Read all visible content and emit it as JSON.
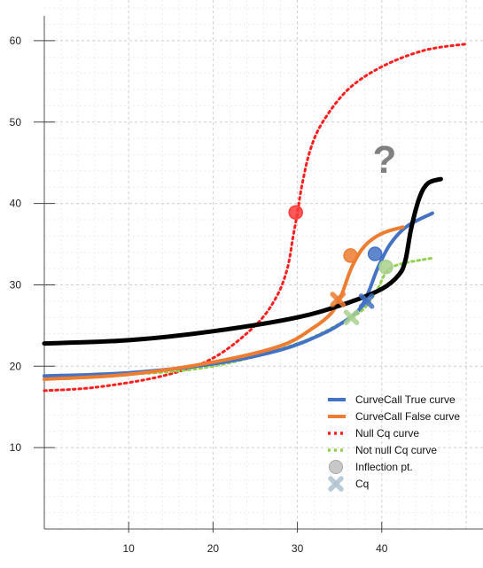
{
  "chart_data": {
    "type": "line",
    "title": "",
    "xlabel": "",
    "ylabel": "",
    "xlim": [
      0,
      52
    ],
    "ylim": [
      0,
      65
    ],
    "x_ticks": [
      10,
      20,
      30,
      40
    ],
    "y_ticks": [
      10,
      20,
      30,
      40,
      50,
      60
    ],
    "grid": true,
    "legend_position": "bottom-right",
    "annotation": "?",
    "series": [
      {
        "name": "CurveCall True curve",
        "color": "#4472C4",
        "style": "solid",
        "points": [
          [
            0,
            18.8
          ],
          [
            10,
            19.2
          ],
          [
            20,
            20.3
          ],
          [
            28,
            22.0
          ],
          [
            33,
            24.0
          ],
          [
            36,
            25.8
          ],
          [
            37.5,
            27.2
          ],
          [
            38.5,
            29.3
          ],
          [
            39.5,
            32.0
          ],
          [
            41,
            35.0
          ],
          [
            43,
            37.2
          ],
          [
            46,
            38.8
          ]
        ]
      },
      {
        "name": "CurveCall False curve",
        "color": "#ED7D31",
        "style": "solid",
        "points": [
          [
            0,
            18.4
          ],
          [
            10,
            19.0
          ],
          [
            20,
            20.5
          ],
          [
            28,
            22.5
          ],
          [
            32,
            24.8
          ],
          [
            34,
            26.5
          ],
          [
            35,
            28.2
          ],
          [
            35.5,
            29.5
          ],
          [
            36.5,
            32.3
          ],
          [
            38,
            34.8
          ],
          [
            40,
            36.3
          ],
          [
            42.5,
            37.1
          ]
        ]
      },
      {
        "name": "",
        "color": "#000000",
        "style": "solid",
        "points": [
          [
            0,
            22.8
          ],
          [
            10,
            23.2
          ],
          [
            20,
            24.3
          ],
          [
            30,
            26.0
          ],
          [
            36,
            27.8
          ],
          [
            40,
            29.5
          ],
          [
            42,
            31.2
          ],
          [
            42.8,
            33.0
          ],
          [
            43.5,
            37.0
          ],
          [
            44.5,
            40.8
          ],
          [
            45.5,
            42.5
          ],
          [
            47,
            43.0
          ]
        ]
      },
      {
        "name": "Null Cq curve",
        "color": "#FF1F1F",
        "style": "dotted",
        "points": [
          [
            0,
            17.0
          ],
          [
            6,
            17.4
          ],
          [
            14,
            18.8
          ],
          [
            20,
            21.0
          ],
          [
            25,
            25.0
          ],
          [
            27.5,
            28.5
          ],
          [
            28.8,
            32.0
          ],
          [
            29.5,
            36.0
          ],
          [
            30,
            38.8
          ],
          [
            30.5,
            42.0
          ],
          [
            31.5,
            46.5
          ],
          [
            33,
            50.0
          ],
          [
            36,
            54.0
          ],
          [
            40,
            56.8
          ],
          [
            45,
            58.8
          ],
          [
            50,
            59.6
          ]
        ]
      },
      {
        "name": "Not null Cq curve",
        "color": "#92D050",
        "style": "dotted",
        "points": [
          [
            0,
            18.8
          ],
          [
            10,
            19.0
          ],
          [
            20,
            20.0
          ],
          [
            30,
            22.8
          ],
          [
            36,
            25.8
          ],
          [
            38,
            27.2
          ],
          [
            39.5,
            29.5
          ],
          [
            40.5,
            31.5
          ],
          [
            42,
            32.5
          ],
          [
            46,
            33.3
          ]
        ]
      }
    ],
    "inflection_points": [
      {
        "series": "Null Cq curve",
        "x": 29.8,
        "y": 38.9,
        "color": "#FF3B3B"
      },
      {
        "series": "CurveCall False curve",
        "x": 36.3,
        "y": 33.6,
        "color": "#ED7D31"
      },
      {
        "series": "CurveCall True curve",
        "x": 39.2,
        "y": 33.8,
        "color": "#4472C4"
      },
      {
        "series": "Not null Cq curve",
        "x": 40.5,
        "y": 32.2,
        "color": "#A9D18E"
      }
    ],
    "cq_points": [
      {
        "series": "CurveCall False curve",
        "x": 34.8,
        "y": 28.2,
        "color": "#ED7D31"
      },
      {
        "series": "Not null Cq curve",
        "x": 36.4,
        "y": 26.0,
        "color": "#A9D18E"
      },
      {
        "series": "CurveCall True curve",
        "x": 38.2,
        "y": 28.0,
        "color": "#4472C4"
      }
    ],
    "legend": [
      {
        "label": "CurveCall True curve",
        "kind": "line",
        "color": "#4472C4"
      },
      {
        "label": "CurveCall False curve",
        "kind": "line",
        "color": "#ED7D31"
      },
      {
        "label": "Null Cq curve",
        "kind": "dotted",
        "color": "#FF1F1F"
      },
      {
        "label": "Not null Cq curve",
        "kind": "dotted",
        "color": "#92D050"
      },
      {
        "label": "Inflection pt.",
        "kind": "circle",
        "color": "#C8C8C8"
      },
      {
        "label": "Cq",
        "kind": "cross",
        "color": "#AFC3D2"
      }
    ]
  }
}
